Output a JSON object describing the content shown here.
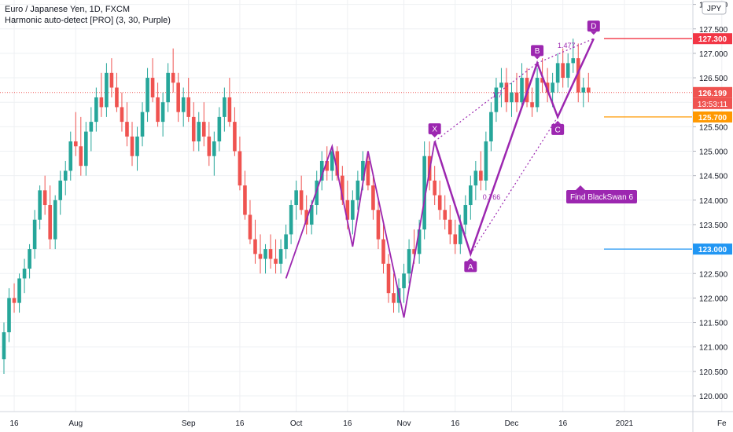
{
  "header": {
    "symbol_line": "Euro / Japanese Yen, 1D, FXCM",
    "indicator_line": "Harmonic auto-detect [PRO] (3, 30, Purple)"
  },
  "currency_badge": "JPY",
  "colors": {
    "bull": "#26a69a",
    "bear": "#ef5350",
    "pattern": "#9c27b0",
    "resistance": "#f23645",
    "support_mid": "#ff9800",
    "support_low": "#2196f3",
    "grid": "#eef0f3"
  },
  "chart_data": {
    "type": "candlestick",
    "title": "Euro / Japanese Yen, 1D, FXCM",
    "y_axis": {
      "min": 119.9,
      "max": 128.1,
      "ticks": [
        "120.000",
        "120.500",
        "121.000",
        "121.500",
        "122.000",
        "122.500",
        "123.000",
        "123.500",
        "124.000",
        "124.500",
        "125.000",
        "125.500",
        "126.000",
        "126.500",
        "127.000",
        "127.500",
        "128.000"
      ]
    },
    "x_axis": {
      "ticks": [
        {
          "label": "16",
          "i": 2
        },
        {
          "label": "Aug",
          "i": 14
        },
        {
          "label": "Sep",
          "i": 36
        },
        {
          "label": "16",
          "i": 46
        },
        {
          "label": "Oct",
          "i": 57
        },
        {
          "label": "16",
          "i": 67
        },
        {
          "label": "Nov",
          "i": 78
        },
        {
          "label": "16",
          "i": 88
        },
        {
          "label": "Dec",
          "i": 99
        },
        {
          "label": "16",
          "i": 109
        },
        {
          "label": "2021",
          "i": 121
        },
        {
          "label": "Fe",
          "i": 140
        }
      ]
    },
    "candles_ohlc": [
      [
        120.75,
        121.5,
        120.45,
        121.3
      ],
      [
        121.3,
        122.2,
        121.1,
        122.0
      ],
      [
        122.0,
        122.3,
        121.7,
        121.9
      ],
      [
        121.9,
        122.5,
        121.7,
        122.4
      ],
      [
        122.4,
        122.8,
        122.1,
        122.6
      ],
      [
        122.6,
        123.1,
        122.4,
        123.0
      ],
      [
        123.0,
        123.8,
        122.8,
        123.6
      ],
      [
        123.6,
        124.3,
        123.4,
        124.2
      ],
      [
        124.2,
        124.5,
        123.7,
        123.9
      ],
      [
        123.9,
        124.3,
        123.0,
        123.2
      ],
      [
        123.2,
        124.1,
        123.0,
        124.0
      ],
      [
        124.0,
        124.6,
        123.7,
        124.4
      ],
      [
        124.4,
        124.8,
        124.1,
        124.6
      ],
      [
        124.6,
        125.4,
        124.4,
        125.2
      ],
      [
        125.2,
        125.8,
        124.9,
        125.1
      ],
      [
        125.1,
        125.7,
        124.5,
        124.7
      ],
      [
        124.7,
        125.6,
        124.5,
        125.4
      ],
      [
        125.4,
        125.9,
        125.0,
        125.6
      ],
      [
        125.6,
        126.3,
        125.4,
        126.1
      ],
      [
        126.1,
        126.6,
        125.7,
        125.9
      ],
      [
        125.9,
        126.8,
        125.7,
        126.6
      ],
      [
        126.6,
        126.9,
        126.1,
        126.3
      ],
      [
        126.3,
        126.6,
        125.8,
        125.9
      ],
      [
        125.9,
        126.2,
        125.4,
        125.6
      ],
      [
        125.6,
        126.0,
        125.1,
        125.3
      ],
      [
        125.3,
        125.6,
        124.7,
        124.9
      ],
      [
        124.9,
        125.5,
        124.6,
        125.3
      ],
      [
        125.3,
        126.0,
        125.1,
        125.8
      ],
      [
        125.8,
        126.7,
        125.6,
        126.5
      ],
      [
        126.5,
        126.9,
        126.0,
        126.1
      ],
      [
        126.1,
        126.4,
        125.5,
        125.6
      ],
      [
        125.6,
        126.2,
        125.3,
        126.0
      ],
      [
        126.0,
        126.8,
        125.8,
        126.6
      ],
      [
        126.6,
        127.1,
        126.2,
        126.4
      ],
      [
        126.4,
        126.6,
        125.6,
        125.8
      ],
      [
        125.8,
        126.3,
        125.5,
        126.1
      ],
      [
        126.1,
        126.5,
        125.6,
        125.7
      ],
      [
        125.7,
        126.0,
        125.0,
        125.2
      ],
      [
        125.2,
        125.8,
        125.0,
        125.6
      ],
      [
        125.6,
        126.0,
        125.1,
        125.3
      ],
      [
        125.3,
        125.6,
        124.7,
        124.9
      ],
      [
        124.9,
        125.4,
        124.5,
        125.2
      ],
      [
        125.2,
        125.9,
        125.0,
        125.7
      ],
      [
        125.7,
        126.3,
        125.4,
        126.1
      ],
      [
        126.1,
        126.5,
        125.5,
        125.6
      ],
      [
        125.6,
        125.9,
        124.9,
        125.0
      ],
      [
        125.0,
        125.3,
        124.2,
        124.3
      ],
      [
        124.3,
        124.6,
        123.6,
        123.7
      ],
      [
        123.7,
        124.0,
        123.1,
        123.2
      ],
      [
        123.2,
        123.6,
        122.7,
        122.9
      ],
      [
        122.9,
        123.3,
        122.5,
        122.8
      ],
      [
        122.8,
        123.1,
        122.5,
        123.0
      ],
      [
        123.0,
        123.3,
        122.6,
        122.8
      ],
      [
        122.8,
        123.2,
        122.5,
        122.7
      ],
      [
        122.7,
        123.2,
        122.5,
        123.0
      ],
      [
        123.0,
        123.5,
        122.8,
        123.3
      ],
      [
        123.3,
        124.0,
        123.1,
        123.9
      ],
      [
        123.9,
        124.4,
        123.6,
        124.2
      ],
      [
        124.2,
        124.5,
        123.7,
        123.8
      ],
      [
        123.8,
        124.1,
        123.3,
        123.5
      ],
      [
        123.5,
        124.0,
        123.3,
        123.9
      ],
      [
        123.9,
        124.6,
        123.7,
        124.4
      ],
      [
        124.4,
        125.0,
        124.2,
        124.8
      ],
      [
        124.8,
        125.1,
        124.4,
        124.6
      ],
      [
        124.6,
        125.1,
        124.4,
        125.0
      ],
      [
        125.0,
        125.1,
        124.4,
        124.5
      ],
      [
        124.5,
        124.7,
        123.9,
        124.0
      ],
      [
        124.0,
        124.4,
        123.4,
        123.6
      ],
      [
        123.6,
        124.2,
        123.3,
        124.0
      ],
      [
        124.0,
        124.6,
        123.8,
        124.4
      ],
      [
        124.4,
        125.0,
        124.2,
        124.8
      ],
      [
        124.8,
        124.9,
        124.2,
        124.3
      ],
      [
        124.3,
        124.5,
        123.6,
        123.8
      ],
      [
        123.8,
        124.0,
        123.0,
        123.2
      ],
      [
        123.2,
        123.5,
        122.5,
        122.7
      ],
      [
        122.7,
        122.9,
        121.9,
        122.1
      ],
      [
        122.1,
        122.5,
        121.7,
        121.9
      ],
      [
        121.9,
        122.4,
        121.7,
        122.2
      ],
      [
        122.2,
        122.7,
        121.9,
        122.5
      ],
      [
        122.5,
        123.2,
        122.3,
        123.0
      ],
      [
        123.0,
        123.4,
        122.7,
        122.9
      ],
      [
        122.9,
        123.6,
        122.7,
        123.4
      ],
      [
        123.4,
        125.2,
        123.2,
        124.9
      ],
      [
        124.9,
        125.2,
        124.2,
        124.4
      ],
      [
        124.4,
        124.7,
        123.9,
        124.1
      ],
      [
        124.1,
        124.4,
        123.6,
        123.8
      ],
      [
        123.8,
        124.1,
        123.4,
        123.6
      ],
      [
        123.6,
        123.9,
        123.1,
        123.3
      ],
      [
        123.3,
        123.6,
        122.9,
        123.1
      ],
      [
        123.1,
        123.7,
        122.9,
        123.5
      ],
      [
        123.5,
        124.1,
        123.3,
        123.9
      ],
      [
        123.9,
        124.5,
        123.6,
        124.3
      ],
      [
        124.3,
        124.8,
        124.0,
        124.6
      ],
      [
        124.6,
        125.0,
        124.2,
        124.4
      ],
      [
        124.4,
        125.4,
        124.2,
        125.2
      ],
      [
        125.2,
        126.0,
        125.0,
        125.8
      ],
      [
        125.8,
        126.5,
        125.6,
        126.3
      ],
      [
        126.3,
        126.7,
        125.9,
        126.4
      ],
      [
        126.4,
        126.7,
        125.8,
        126.0
      ],
      [
        126.0,
        126.4,
        125.7,
        126.2
      ],
      [
        126.2,
        126.6,
        125.8,
        126.0
      ],
      [
        126.0,
        126.8,
        125.9,
        126.5
      ],
      [
        126.5,
        126.7,
        125.9,
        126.0
      ],
      [
        126.0,
        126.3,
        125.7,
        125.9
      ],
      [
        125.9,
        126.7,
        125.8,
        126.5
      ],
      [
        126.5,
        126.9,
        126.2,
        126.4
      ],
      [
        126.4,
        126.7,
        126.0,
        126.2
      ],
      [
        126.2,
        126.6,
        125.9,
        126.4
      ],
      [
        126.4,
        127.0,
        126.2,
        126.8
      ],
      [
        126.8,
        127.1,
        126.3,
        126.5
      ],
      [
        126.5,
        127.0,
        126.3,
        126.8
      ],
      [
        126.8,
        127.3,
        126.6,
        126.9
      ],
      [
        126.9,
        127.2,
        126.0,
        126.2
      ],
      [
        126.2,
        126.5,
        125.9,
        126.3
      ],
      [
        126.3,
        126.6,
        126.0,
        126.2
      ]
    ],
    "overlay_lines": [
      {
        "label": "127.300",
        "price": 127.3,
        "color": "#f23645"
      },
      {
        "label": "126.199",
        "price": 126.199,
        "color": "#ef5350"
      },
      {
        "label": "125.700",
        "price": 125.7,
        "color": "#ff9800"
      },
      {
        "label": "123.000",
        "price": 123.0,
        "color": "#2196f3"
      }
    ],
    "countdown": "13:53:11",
    "harmonic_pattern": {
      "points": [
        {
          "label": "X",
          "i": 84,
          "price": 125.2
        },
        {
          "label": "A",
          "i": 91,
          "price": 122.9
        },
        {
          "label": "B",
          "i": 104,
          "price": 126.8
        },
        {
          "label": "C",
          "i": 108,
          "price": 125.7
        },
        {
          "label": "D",
          "i": 115,
          "price": 127.3
        }
      ],
      "ratios": [
        "1.7",
        "0.766",
        "1.477"
      ],
      "prior_zigzag": [
        {
          "i": 55,
          "price": 122.4
        },
        {
          "i": 64,
          "price": 125.1
        },
        {
          "i": 68,
          "price": 123.05
        },
        {
          "i": 71,
          "price": 125.0
        },
        {
          "i": 78,
          "price": 121.6
        },
        {
          "i": 84,
          "price": 125.2
        }
      ]
    },
    "annotation": "Find BlackSwan 6"
  }
}
